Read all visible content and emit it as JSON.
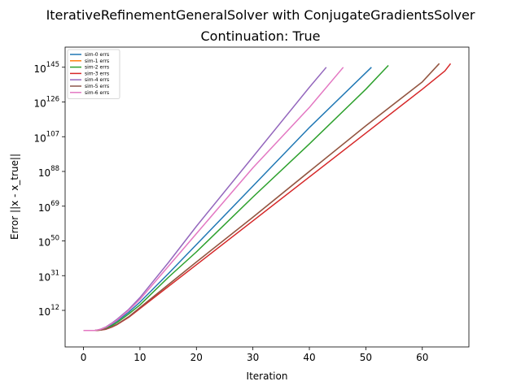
{
  "chart_data": {
    "type": "line",
    "title": "IterativeRefinementGeneralSolver with ConjugateGradientsSolver",
    "subtitle": "Continuation: True",
    "xlabel": "Iteration",
    "ylabel": "Error ||x - x_true||",
    "y_scale": "log",
    "xlim": [
      -3.25,
      68.25
    ],
    "ylim_log10": [
      -8,
      156
    ],
    "x_ticks": [
      0,
      10,
      20,
      30,
      40,
      50,
      60
    ],
    "y_ticks": [
      {
        "base": "10",
        "exp": "12"
      },
      {
        "base": "10",
        "exp": "31"
      },
      {
        "base": "10",
        "exp": "50"
      },
      {
        "base": "10",
        "exp": "69"
      },
      {
        "base": "10",
        "exp": "88"
      },
      {
        "base": "10",
        "exp": "107"
      },
      {
        "base": "10",
        "exp": "126"
      },
      {
        "base": "10",
        "exp": "145"
      }
    ],
    "grid": false,
    "legend_position": "top-left",
    "series": [
      {
        "name": "sim-0 errs",
        "color": "#1f77b4",
        "x": [
          0,
          2,
          3,
          4,
          5,
          6,
          8,
          10,
          15,
          20,
          30,
          40,
          51
        ],
        "log10_y": [
          1,
          1,
          1.4,
          2.5,
          4.3,
          6.3,
          11,
          16.5,
          32,
          48,
          80,
          112,
          145
        ]
      },
      {
        "name": "sim-1 errs",
        "color": "#ff7f0e",
        "x": [
          0,
          2,
          3,
          4,
          5,
          6,
          8,
          10,
          15,
          20,
          30,
          40,
          50,
          60,
          63
        ],
        "log10_y": [
          1,
          1,
          1.2,
          1.8,
          3,
          4.5,
          8.5,
          13.5,
          26,
          38.5,
          63,
          88,
          113,
          137,
          147
        ]
      },
      {
        "name": "sim-2 errs",
        "color": "#2ca02c",
        "x": [
          0,
          2,
          3,
          4,
          5,
          6,
          8,
          10,
          15,
          20,
          30,
          40,
          50,
          54
        ],
        "log10_y": [
          1,
          1,
          1.3,
          2.1,
          3.6,
          5.5,
          10,
          15,
          30,
          44,
          74,
          103,
          133,
          146
        ]
      },
      {
        "name": "sim-3 errs",
        "color": "#d62728",
        "x": [
          0,
          2,
          3,
          4,
          5,
          6,
          8,
          10,
          15,
          20,
          30,
          40,
          50,
          60,
          64,
          65
        ],
        "log10_y": [
          1,
          1,
          1.2,
          1.7,
          2.8,
          4.3,
          8.2,
          13,
          25,
          37,
          61,
          85,
          109,
          133,
          143,
          147
        ]
      },
      {
        "name": "sim-4 errs",
        "color": "#9467bd",
        "x": [
          0,
          2,
          3,
          4,
          5,
          6,
          8,
          10,
          15,
          20,
          30,
          40,
          43
        ],
        "log10_y": [
          1,
          1,
          1.7,
          3,
          5,
          7.3,
          12.5,
          19,
          38,
          58,
          96,
          134,
          145
        ]
      },
      {
        "name": "sim-5 errs",
        "color": "#8c564b",
        "x": [
          0,
          2,
          3,
          4,
          5,
          6,
          8,
          10,
          15,
          20,
          30,
          40,
          50,
          60,
          63
        ],
        "log10_y": [
          1,
          1,
          1.2,
          1.8,
          3,
          4.5,
          8.5,
          13.5,
          26,
          38.5,
          63,
          88,
          113,
          137,
          147
        ]
      },
      {
        "name": "sim-6 errs",
        "color": "#e377c2",
        "x": [
          0,
          2,
          3,
          4,
          5,
          6,
          8,
          10,
          15,
          20,
          30,
          40,
          46
        ],
        "log10_y": [
          1,
          1,
          1.6,
          2.8,
          4.7,
          6.8,
          12,
          18,
          36,
          54,
          90,
          123,
          145
        ]
      }
    ]
  }
}
